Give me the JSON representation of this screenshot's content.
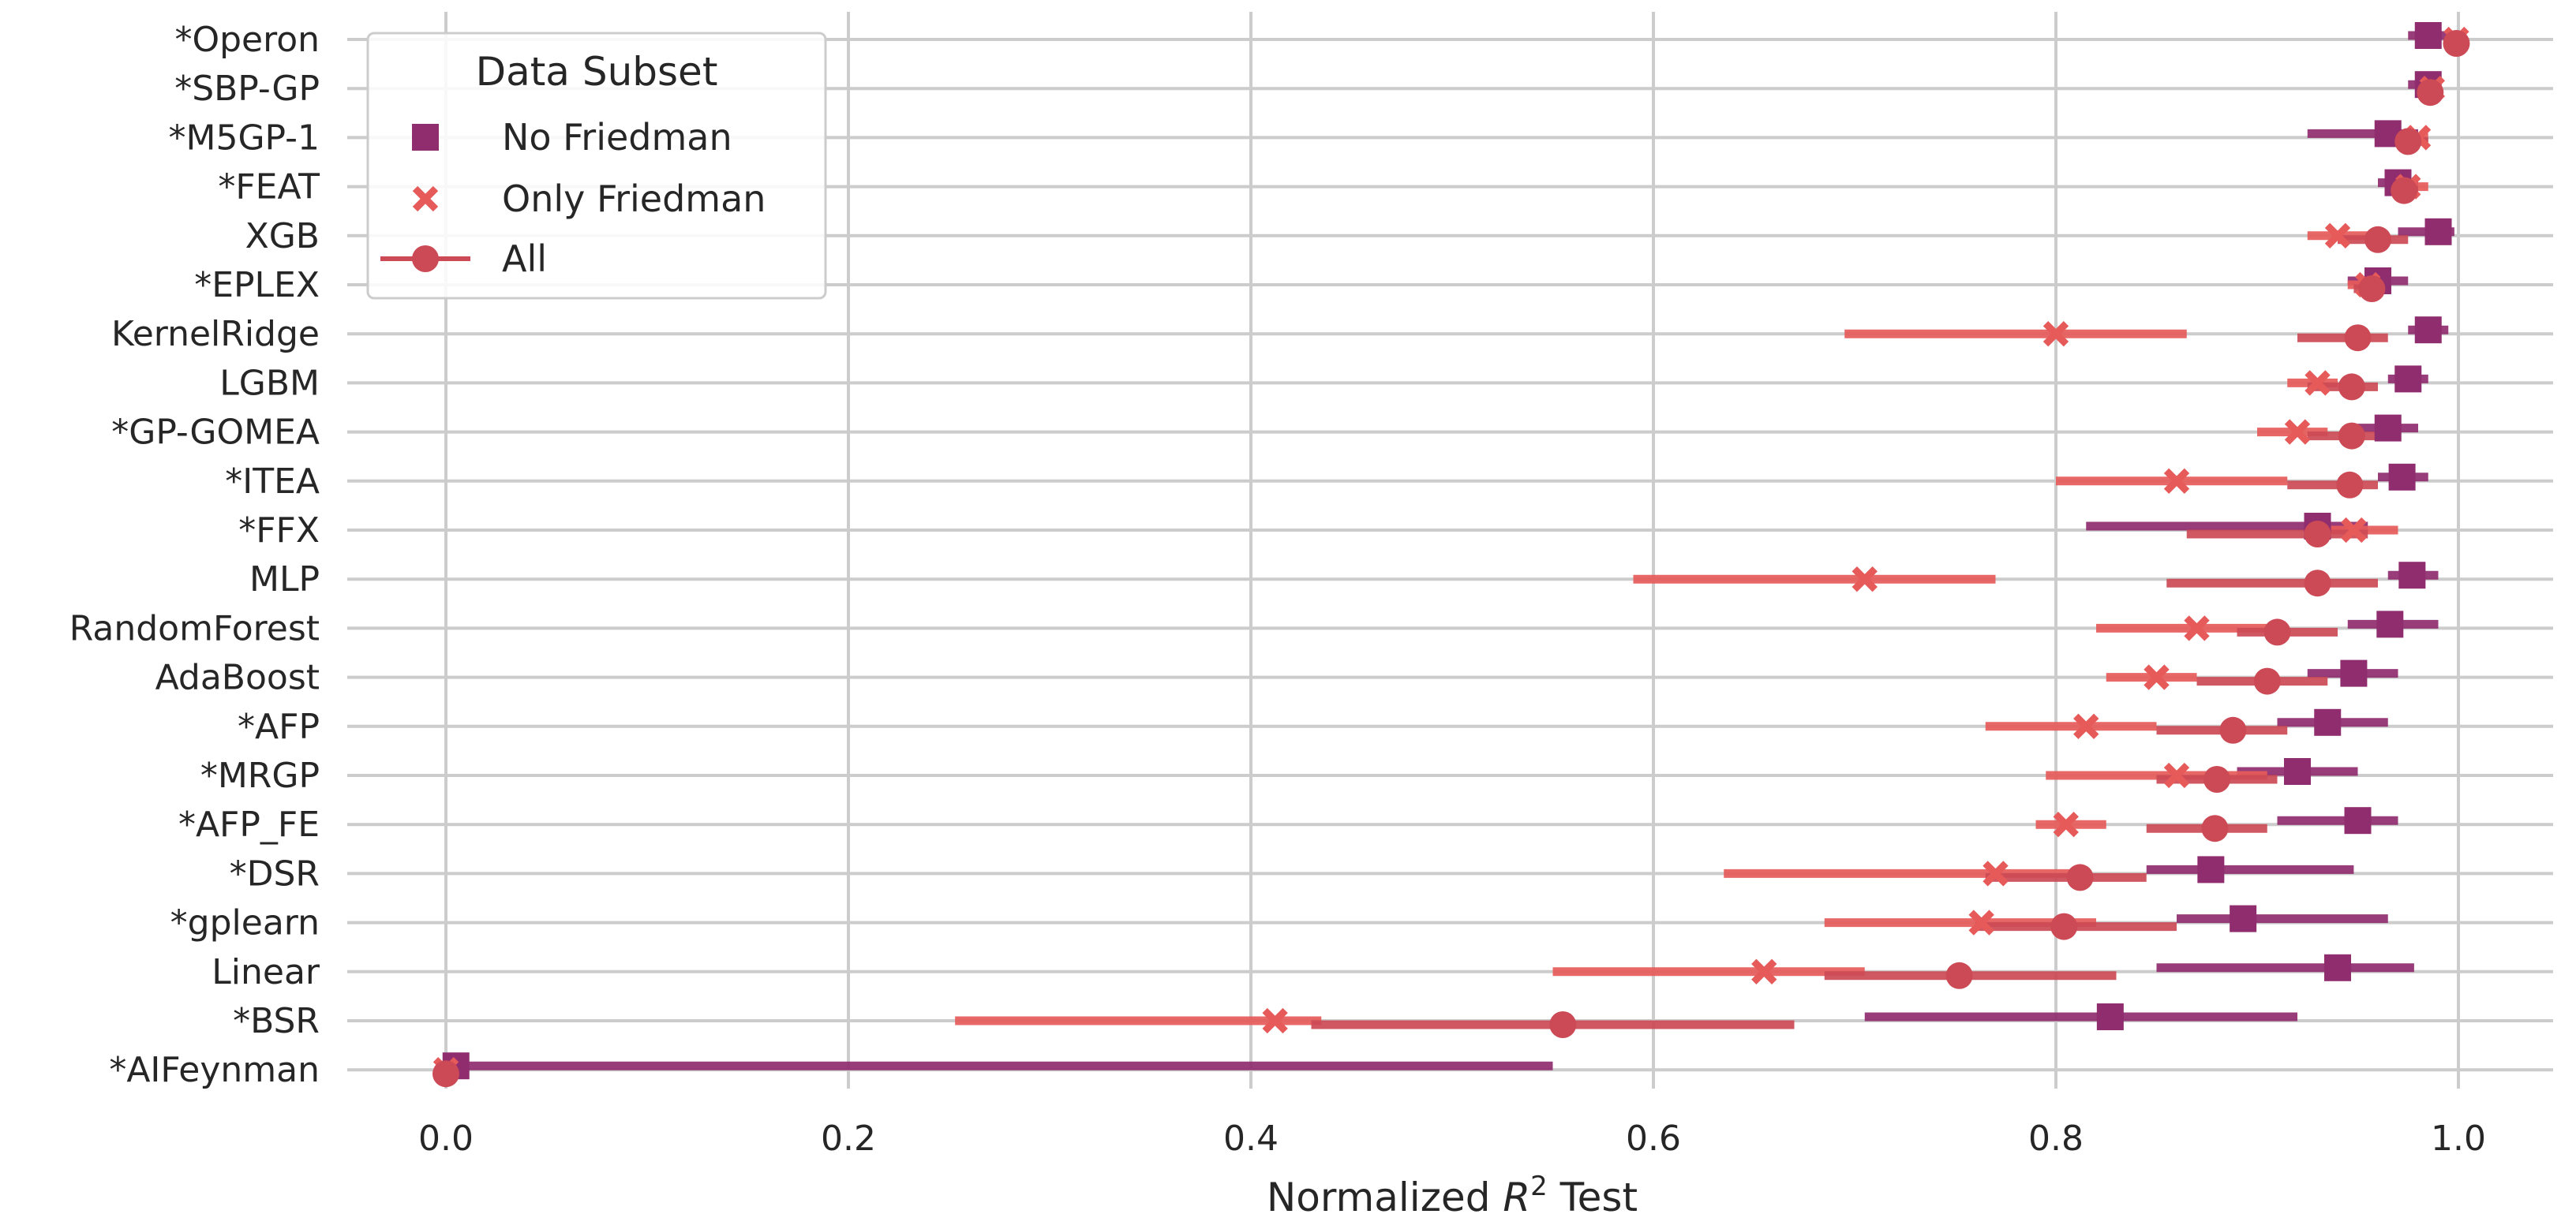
{
  "chart_data": {
    "type": "scatter",
    "xlabel_prefix": "Normalized ",
    "xlabel_symbol": "R",
    "xlabel_exponent": "2",
    "xlabel_suffix": " Test",
    "xlim": [
      -0.05,
      1.05
    ],
    "xticks": [
      "0.0",
      "0.2",
      "0.4",
      "0.6",
      "0.8",
      "1.0"
    ],
    "grid": true,
    "legend": {
      "title": "Data Subset",
      "placement": "top-left",
      "entries": [
        "No Friedman",
        "Only Friedman",
        "All"
      ]
    },
    "colors": {
      "no_friedman": "#8f2d6e",
      "only_friedman": "#e65a5a",
      "all": "#cc4a55",
      "grid": "#cccccc"
    },
    "categories": [
      "*Operon",
      "*SBP-GP",
      "*M5GP-1",
      "*FEAT",
      "XGB",
      "*EPLEX",
      "KernelRidge",
      "LGBM",
      "*GP-GOMEA",
      "*ITEA",
      "*FFX",
      "MLP",
      "RandomForest",
      "AdaBoost",
      "*AFP",
      "*MRGP",
      "*AFP_FE",
      "*DSR",
      "*gplearn",
      "Linear",
      "*BSR",
      "*AIFeynman"
    ],
    "series": [
      {
        "name": "No Friedman",
        "marker": "square",
        "values": [
          0.985,
          0.985,
          0.965,
          0.97,
          0.99,
          0.96,
          0.985,
          0.975,
          0.965,
          0.972,
          0.93,
          0.977,
          0.966,
          0.948,
          0.935,
          0.92,
          0.95,
          0.877,
          0.893,
          0.94,
          0.827,
          0.005
        ],
        "lower": [
          0.975,
          0.975,
          0.925,
          0.96,
          0.97,
          0.945,
          0.975,
          0.965,
          0.95,
          0.96,
          0.815,
          0.965,
          0.945,
          0.925,
          0.91,
          0.89,
          0.91,
          0.845,
          0.86,
          0.85,
          0.705,
          0.0
        ],
        "upper": [
          0.995,
          0.99,
          0.98,
          0.98,
          0.998,
          0.975,
          0.995,
          0.985,
          0.98,
          0.985,
          0.955,
          0.99,
          0.99,
          0.97,
          0.965,
          0.95,
          0.97,
          0.948,
          0.965,
          0.978,
          0.92,
          0.55
        ]
      },
      {
        "name": "Only Friedman",
        "marker": "x",
        "values": [
          0.999,
          0.987,
          0.98,
          0.975,
          0.94,
          0.955,
          0.8,
          0.93,
          0.92,
          0.86,
          0.948,
          0.705,
          0.87,
          0.85,
          0.815,
          0.86,
          0.805,
          0.77,
          0.763,
          0.655,
          0.412,
          0.0
        ],
        "lower": [
          0.995,
          0.98,
          0.97,
          0.965,
          0.925,
          0.945,
          0.695,
          0.915,
          0.9,
          0.8,
          0.925,
          0.59,
          0.82,
          0.825,
          0.765,
          0.795,
          0.79,
          0.635,
          0.685,
          0.55,
          0.253,
          0.0
        ],
        "upper": [
          1.0,
          0.99,
          0.985,
          0.985,
          0.955,
          0.965,
          0.865,
          0.94,
          0.935,
          0.915,
          0.97,
          0.77,
          0.91,
          0.87,
          0.85,
          0.905,
          0.825,
          0.81,
          0.82,
          0.705,
          0.435,
          0.0
        ]
      },
      {
        "name": "All",
        "marker": "circle",
        "values": [
          0.999,
          0.986,
          0.975,
          0.973,
          0.96,
          0.957,
          0.95,
          0.947,
          0.947,
          0.946,
          0.93,
          0.93,
          0.91,
          0.905,
          0.888,
          0.88,
          0.879,
          0.812,
          0.804,
          0.752,
          0.555,
          0.0
        ],
        "lower": [
          0.993,
          0.98,
          0.96,
          0.965,
          0.94,
          0.948,
          0.92,
          0.925,
          0.925,
          0.915,
          0.865,
          0.855,
          0.89,
          0.87,
          0.85,
          0.85,
          0.845,
          0.765,
          0.76,
          0.685,
          0.43,
          0.0
        ],
        "upper": [
          1.0,
          0.99,
          0.985,
          0.98,
          0.975,
          0.965,
          0.965,
          0.96,
          0.96,
          0.96,
          0.955,
          0.96,
          0.94,
          0.935,
          0.915,
          0.91,
          0.905,
          0.845,
          0.86,
          0.83,
          0.67,
          0.0
        ]
      }
    ]
  }
}
